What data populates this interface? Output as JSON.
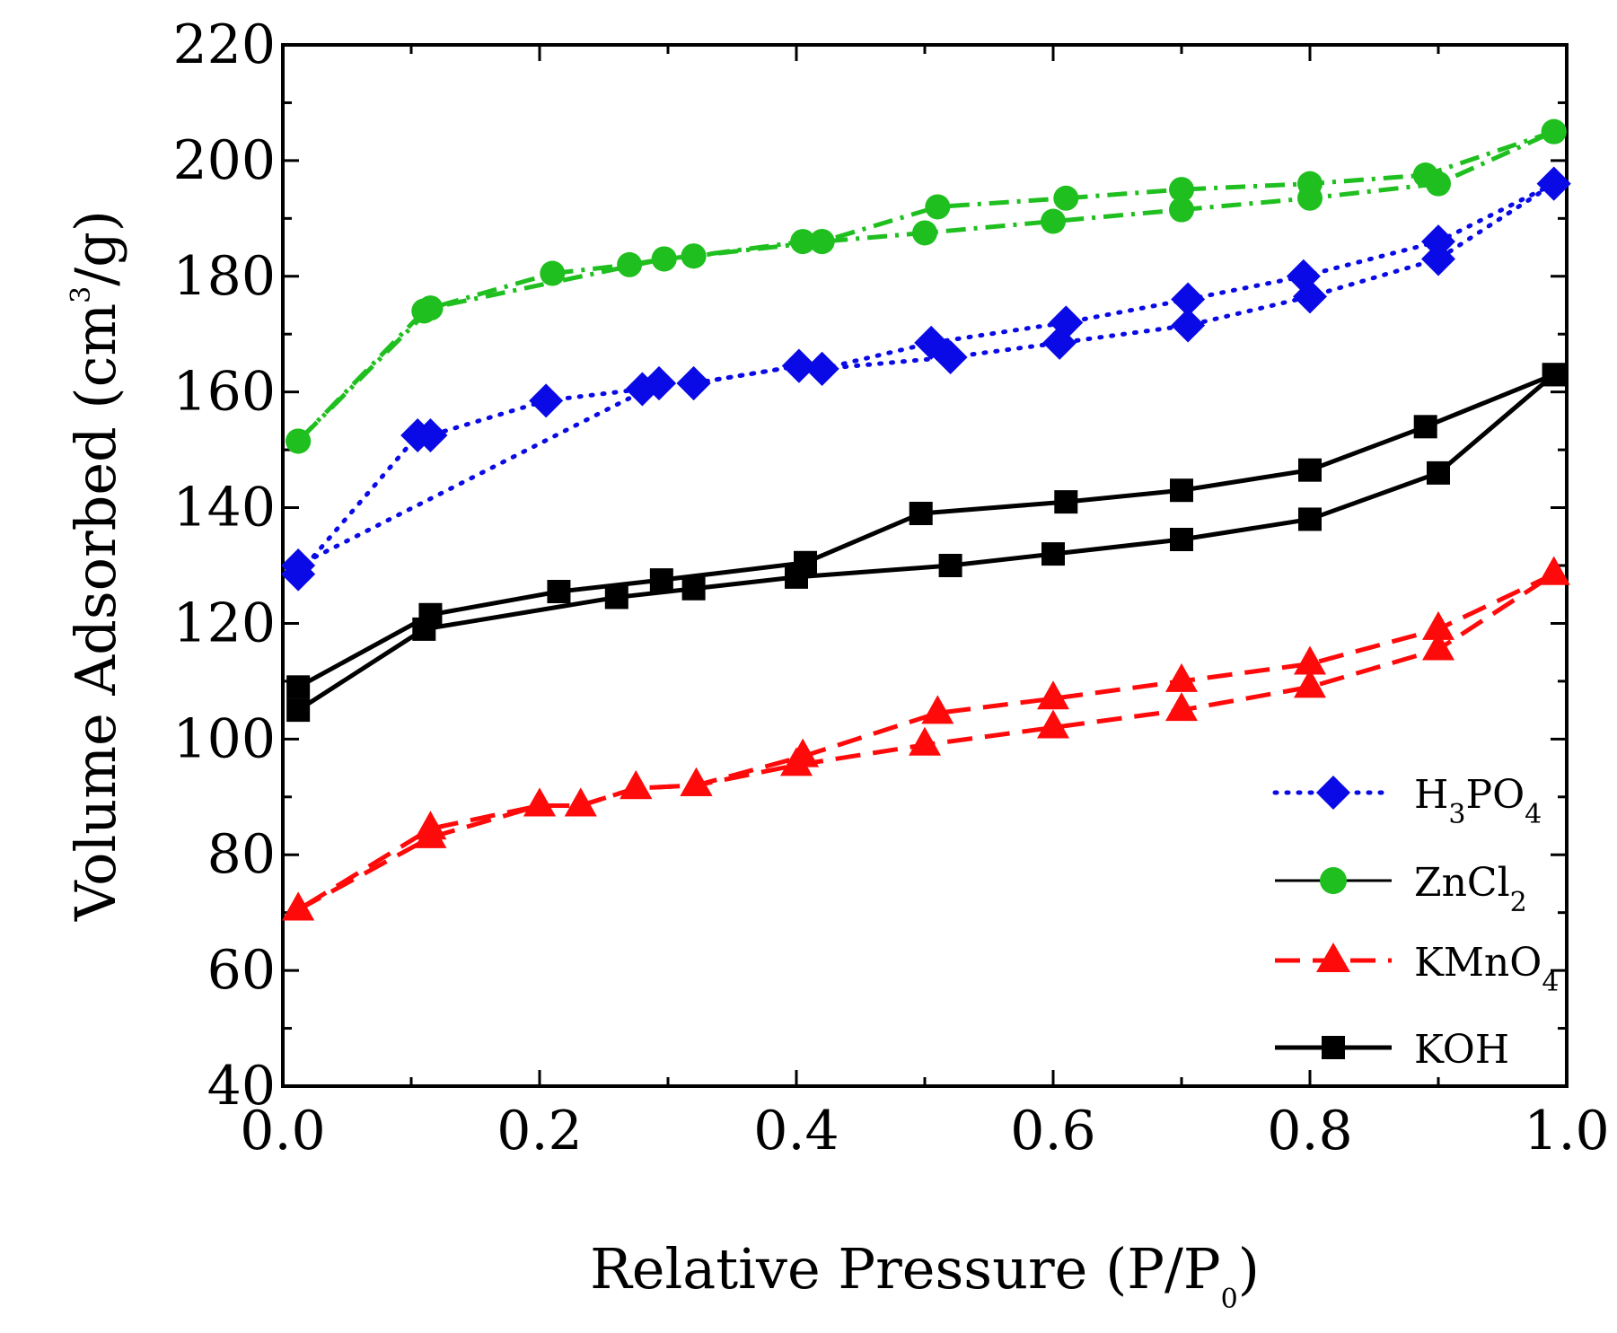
{
  "chart_data": {
    "type": "line",
    "title": "",
    "xlabel": {
      "main": "Relative Pressure (P/P",
      "sub": "0",
      "end": ")"
    },
    "ylabel": {
      "main": "Volume Adsorbed (cm",
      "sup": "3",
      "end": "/g)"
    },
    "xlim": [
      0.0,
      1.0
    ],
    "ylim": [
      40,
      220
    ],
    "x_ticks": [
      "0.0",
      "0.2",
      "0.4",
      "0.6",
      "0.8",
      "1.0"
    ],
    "y_ticks": [
      "40",
      "60",
      "80",
      "100",
      "120",
      "140",
      "160",
      "180",
      "200",
      "220"
    ],
    "legend_position": "bottom-right",
    "series": [
      {
        "name": "H3PO4",
        "label": {
          "main": "H",
          "sub1": "3",
          "mid": "PO",
          "sub2": "4"
        },
        "color": "#0a0ae6",
        "marker": "diamond",
        "line": "dotted",
        "adsorption": [
          [
            0.012,
            128.5
          ],
          [
            0.105,
            152.5
          ],
          [
            0.115,
            152.5
          ],
          [
            0.205,
            158.5
          ],
          [
            0.28,
            160.5
          ],
          [
            0.293,
            161.5
          ],
          [
            0.32,
            161.5
          ],
          [
            0.402,
            164.5
          ],
          [
            0.42,
            164
          ],
          [
            0.52,
            166
          ],
          [
            0.605,
            168.5
          ],
          [
            0.705,
            171.5
          ],
          [
            0.8,
            176.5
          ],
          [
            0.9,
            183
          ],
          [
            0.99,
            196
          ]
        ],
        "desorption": [
          [
            0.99,
            196
          ],
          [
            0.9,
            186
          ],
          [
            0.795,
            180
          ],
          [
            0.705,
            176
          ],
          [
            0.61,
            172
          ],
          [
            0.505,
            168.5
          ],
          [
            0.42,
            164
          ],
          [
            0.402,
            164.5
          ],
          [
            0.32,
            161.5
          ],
          [
            0.293,
            161.5
          ],
          [
            0.012,
            130
          ]
        ]
      },
      {
        "name": "ZnCl2",
        "label": {
          "main": "ZnCl",
          "sub1": "2"
        },
        "color": "#1fbf1f",
        "marker": "circle",
        "line": "dash-dot",
        "adsorption": [
          [
            0.012,
            151.5
          ],
          [
            0.11,
            174
          ],
          [
            0.115,
            174.5
          ],
          [
            0.21,
            180.5
          ],
          [
            0.27,
            182
          ],
          [
            0.297,
            183
          ],
          [
            0.32,
            183.5
          ],
          [
            0.405,
            186
          ],
          [
            0.42,
            186
          ],
          [
            0.5,
            187.5
          ],
          [
            0.6,
            189.5
          ],
          [
            0.7,
            191.5
          ],
          [
            0.8,
            193.5
          ],
          [
            0.9,
            196
          ],
          [
            0.99,
            205
          ]
        ],
        "desorption": [
          [
            0.99,
            205
          ],
          [
            0.89,
            197.5
          ],
          [
            0.8,
            196
          ],
          [
            0.7,
            195
          ],
          [
            0.61,
            193.5
          ],
          [
            0.51,
            192
          ],
          [
            0.42,
            186
          ],
          [
            0.32,
            183.5
          ],
          [
            0.297,
            183
          ],
          [
            0.115,
            174.5
          ],
          [
            0.012,
            151.5
          ]
        ]
      },
      {
        "name": "KMnO4",
        "label": {
          "main": "KMnO",
          "sub1": "4"
        },
        "color": "#ff0a0a",
        "marker": "triangle",
        "line": "dashed",
        "adsorption": [
          [
            0.012,
            70.5
          ],
          [
            0.115,
            83
          ],
          [
            0.2,
            88.5
          ],
          [
            0.232,
            88.5
          ],
          [
            0.275,
            91.5
          ],
          [
            0.322,
            92
          ],
          [
            0.4,
            95.5
          ],
          [
            0.5,
            99
          ],
          [
            0.6,
            102
          ],
          [
            0.7,
            105
          ],
          [
            0.8,
            109
          ],
          [
            0.9,
            115.5
          ],
          [
            0.99,
            128.5
          ]
        ],
        "desorption": [
          [
            0.99,
            128.5
          ],
          [
            0.9,
            119
          ],
          [
            0.8,
            113
          ],
          [
            0.7,
            110
          ],
          [
            0.6,
            107
          ],
          [
            0.51,
            104.5
          ],
          [
            0.405,
            97
          ],
          [
            0.322,
            92
          ],
          [
            0.275,
            91.5
          ],
          [
            0.232,
            88.5
          ],
          [
            0.2,
            88.5
          ],
          [
            0.115,
            84.5
          ],
          [
            0.012,
            70.5
          ]
        ]
      },
      {
        "name": "KOH",
        "label": {
          "main": "KOH"
        },
        "color": "#000000",
        "marker": "square",
        "line": "solid",
        "adsorption": [
          [
            0.012,
            105
          ],
          [
            0.11,
            119
          ],
          [
            0.26,
            124.5
          ],
          [
            0.32,
            126
          ],
          [
            0.4,
            128
          ],
          [
            0.52,
            130
          ],
          [
            0.6,
            132
          ],
          [
            0.7,
            134.5
          ],
          [
            0.8,
            138
          ],
          [
            0.9,
            146
          ],
          [
            0.99,
            163
          ]
        ],
        "desorption": [
          [
            0.99,
            163
          ],
          [
            0.89,
            154
          ],
          [
            0.8,
            146.5
          ],
          [
            0.7,
            143
          ],
          [
            0.61,
            141
          ],
          [
            0.497,
            139
          ],
          [
            0.407,
            130.5
          ],
          [
            0.295,
            127.5
          ],
          [
            0.215,
            125.5
          ],
          [
            0.115,
            121.5
          ],
          [
            0.012,
            109
          ]
        ]
      }
    ]
  }
}
